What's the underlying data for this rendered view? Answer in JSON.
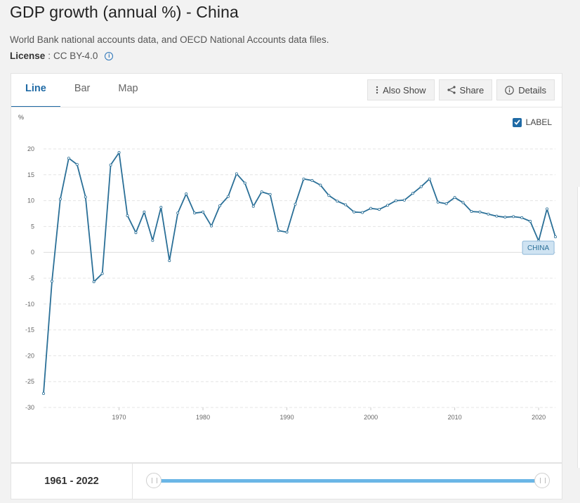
{
  "page": {
    "title": "GDP growth (annual %) - China",
    "source": "World Bank national accounts data, and OECD National Accounts data files.",
    "license_label": "License",
    "license_sep": " : ",
    "license_value": "CC BY-4.0"
  },
  "tabs": [
    {
      "label": "Line",
      "active": true
    },
    {
      "label": "Bar",
      "active": false
    },
    {
      "label": "Map",
      "active": false
    }
  ],
  "toolbar": {
    "also_show": "Also Show",
    "share": "Share",
    "details": "Details"
  },
  "label_toggle": {
    "label": "LABEL",
    "checked": true
  },
  "range": {
    "start": "1961",
    "sep": " - ",
    "end": "2022"
  },
  "chart_data": {
    "type": "line",
    "ylabel": "%",
    "ylim": [
      -30,
      20
    ],
    "yticks": [
      20,
      15,
      10,
      5,
      0,
      -5,
      -10,
      -15,
      -20,
      -25,
      -30
    ],
    "xlim": [
      1961,
      2022
    ],
    "xticks": [
      1970,
      1980,
      1990,
      2000,
      2010,
      2020
    ],
    "grid": true,
    "series": [
      {
        "name": "CHINA",
        "color": "#2a6f97",
        "x": [
          1961,
          1962,
          1963,
          1964,
          1965,
          1966,
          1967,
          1968,
          1969,
          1970,
          1971,
          1972,
          1973,
          1974,
          1975,
          1976,
          1977,
          1978,
          1979,
          1980,
          1981,
          1982,
          1983,
          1984,
          1985,
          1986,
          1987,
          1988,
          1989,
          1990,
          1991,
          1992,
          1993,
          1994,
          1995,
          1996,
          1997,
          1998,
          1999,
          2000,
          2001,
          2002,
          2003,
          2004,
          2005,
          2006,
          2007,
          2008,
          2009,
          2010,
          2011,
          2012,
          2013,
          2014,
          2015,
          2016,
          2017,
          2018,
          2019,
          2020,
          2021,
          2022
        ],
        "values": [
          -27.3,
          -5.6,
          10.3,
          18.2,
          17.0,
          10.7,
          -5.7,
          -4.1,
          16.9,
          19.3,
          7.1,
          3.8,
          7.8,
          2.3,
          8.7,
          -1.6,
          7.6,
          11.3,
          7.6,
          7.8,
          5.1,
          9.0,
          10.8,
          15.2,
          13.4,
          8.9,
          11.7,
          11.2,
          4.2,
          3.9,
          9.3,
          14.2,
          13.9,
          13.0,
          11.0,
          9.9,
          9.2,
          7.8,
          7.7,
          8.5,
          8.3,
          9.1,
          10.0,
          10.1,
          11.4,
          12.7,
          14.2,
          9.7,
          9.4,
          10.6,
          9.6,
          7.9,
          7.8,
          7.4,
          7.0,
          6.8,
          6.9,
          6.7,
          6.0,
          2.2,
          8.4,
          3.0
        ]
      }
    ],
    "end_label": "CHINA"
  }
}
